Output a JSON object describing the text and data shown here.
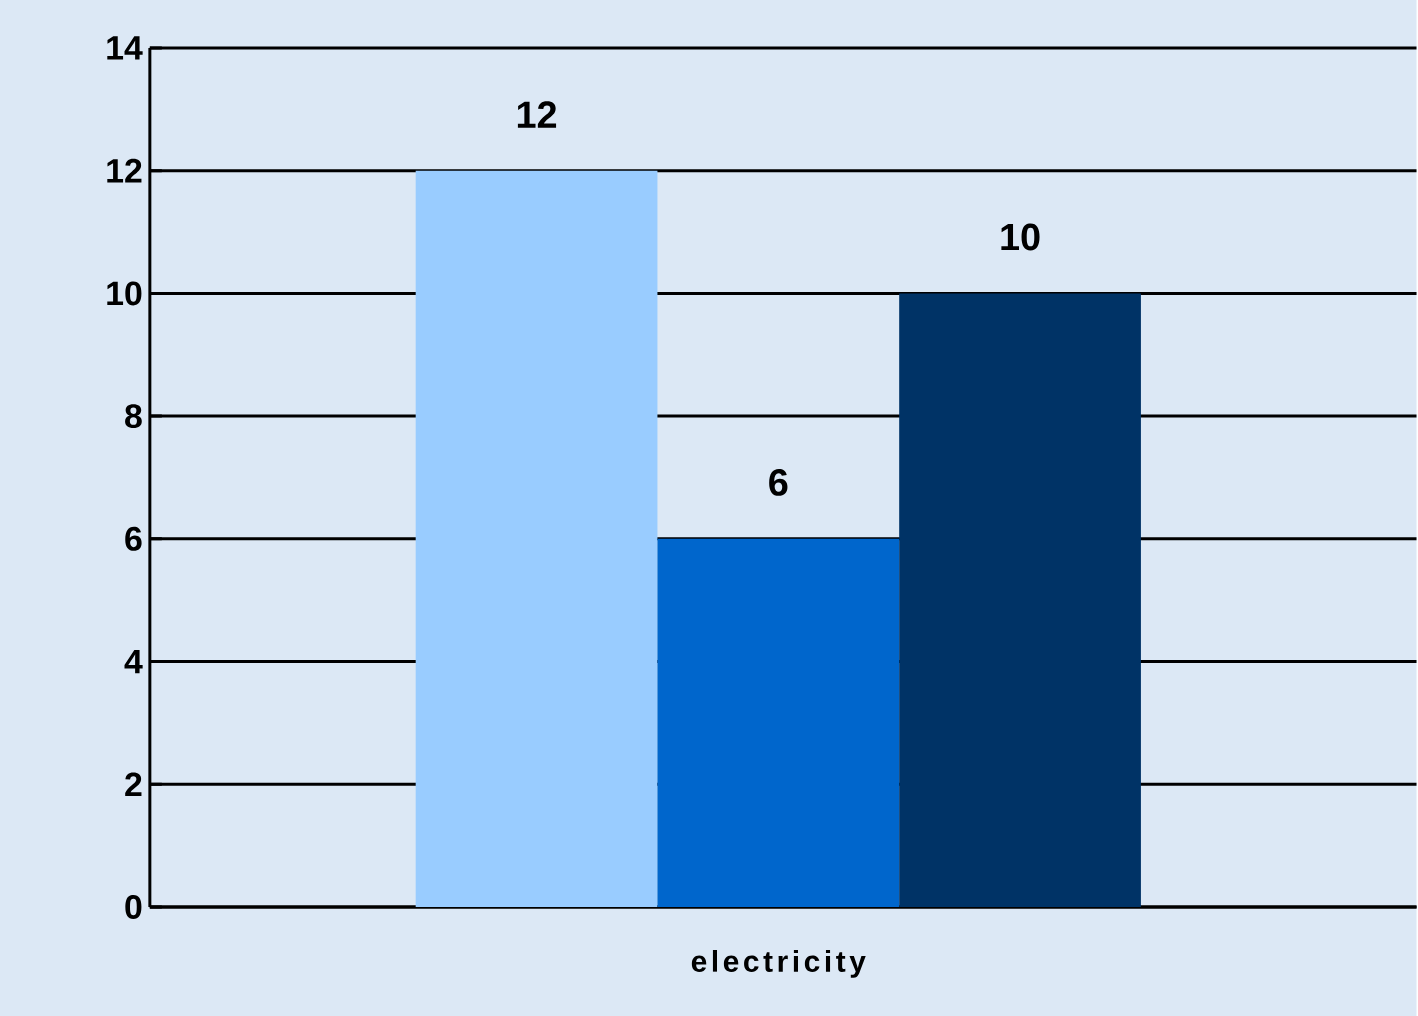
{
  "chart_data": {
    "type": "bar",
    "categories": [
      "electricity"
    ],
    "series": [
      {
        "color": "#99ccff",
        "values": [
          12
        ]
      },
      {
        "color": "#0066cc",
        "values": [
          6
        ]
      },
      {
        "color": "#003366",
        "values": [
          10
        ]
      }
    ],
    "ylim": [
      0,
      14
    ],
    "yticks": [
      0,
      2,
      4,
      6,
      8,
      10,
      12,
      14
    ],
    "grid": "y",
    "data_labels": true
  }
}
